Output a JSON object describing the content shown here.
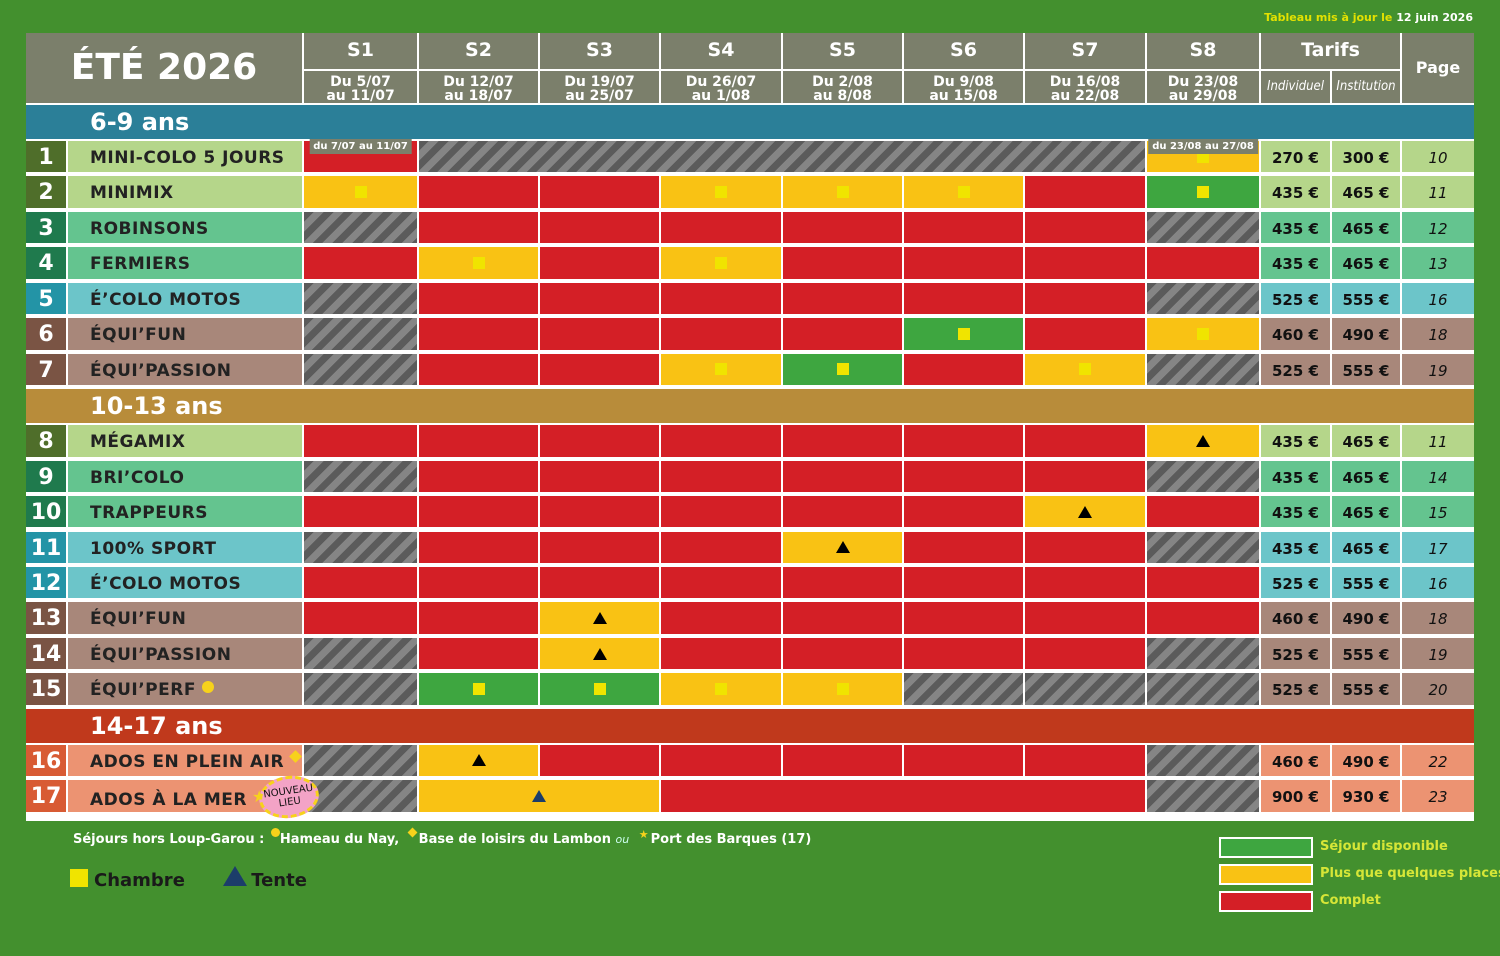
{
  "updated": {
    "prefix": "Tableau mis à jour le",
    "date": "12 juin 2026"
  },
  "title": "ÉTÉ 2026",
  "weeks": [
    {
      "label": "S1",
      "line1": "Du 5/07",
      "line2": "au 11/07"
    },
    {
      "label": "S2",
      "line1": "Du 12/07",
      "line2": "au 18/07"
    },
    {
      "label": "S3",
      "line1": "Du 19/07",
      "line2": "au 25/07"
    },
    {
      "label": "S4",
      "line1": "Du 26/07",
      "line2": "au 1/08"
    },
    {
      "label": "S5",
      "line1": "Du 2/08",
      "line2": "au 8/08"
    },
    {
      "label": "S6",
      "line1": "Du 9/08",
      "line2": "au 15/08"
    },
    {
      "label": "S7",
      "line1": "Du 16/08",
      "line2": "au 22/08"
    },
    {
      "label": "S8",
      "line1": "Du 23/08",
      "line2": "au 29/08"
    }
  ],
  "tarifs": {
    "label": "Tarifs",
    "individuel": "Individuel",
    "institution": "Institution"
  },
  "page_label": "Page",
  "colors": {
    "available": "#3ea640",
    "few": "#f9c214",
    "full": "#d41f26",
    "na": "#6f6f6f"
  },
  "age_groups": [
    {
      "label": "6-9 ans",
      "color": "#2b7f98"
    },
    {
      "label": "10-13 ans",
      "color": "#b88c3a"
    },
    {
      "label": "14-17 ans",
      "color": "#c0391c"
    }
  ],
  "rows": [
    {
      "num": "1",
      "name": "MINI-COLO 5 JOURS",
      "group": 0,
      "color": "#b5d68a",
      "numColor": "#4f6e2a",
      "prices": [
        "270 €",
        "300 €"
      ],
      "page": "10",
      "cells": [
        {
          "s": "red",
          "span": 1,
          "note": "du 7/07 au 11/07"
        },
        {
          "s": "na",
          "span": 6
        },
        {
          "s": "yel",
          "span": 1,
          "m": "sq",
          "note": "du 23/08 au 27/08"
        }
      ]
    },
    {
      "num": "2",
      "name": "MINIMIX",
      "group": 0,
      "color": "#b5d68a",
      "numColor": "#4f6e2a",
      "prices": [
        "435 €",
        "465 €"
      ],
      "page": "11",
      "cells": [
        {
          "s": "yel",
          "m": "sq"
        },
        {
          "s": "red"
        },
        {
          "s": "red"
        },
        {
          "s": "yel",
          "m": "sq"
        },
        {
          "s": "yel",
          "m": "sq"
        },
        {
          "s": "yel",
          "m": "sq"
        },
        {
          "s": "red"
        },
        {
          "s": "grn",
          "m": "sq"
        }
      ]
    },
    {
      "num": "3",
      "name": "ROBINSONS",
      "group": 0,
      "color": "#64c48f",
      "numColor": "#1f7a4d",
      "prices": [
        "435 €",
        "465 €"
      ],
      "page": "12",
      "cells": [
        {
          "s": "na"
        },
        {
          "s": "red"
        },
        {
          "s": "red"
        },
        {
          "s": "red"
        },
        {
          "s": "red"
        },
        {
          "s": "red"
        },
        {
          "s": "red"
        },
        {
          "s": "na"
        }
      ]
    },
    {
      "num": "4",
      "name": "FERMIERS",
      "group": 0,
      "color": "#64c48f",
      "numColor": "#1f7a4d",
      "prices": [
        "435 €",
        "465 €"
      ],
      "page": "13",
      "cells": [
        {
          "s": "red"
        },
        {
          "s": "yel",
          "m": "sq"
        },
        {
          "s": "red"
        },
        {
          "s": "yel",
          "m": "sq"
        },
        {
          "s": "red"
        },
        {
          "s": "red"
        },
        {
          "s": "red"
        },
        {
          "s": "red"
        }
      ]
    },
    {
      "num": "5",
      "name": "É’COLO MOTOS",
      "group": 0,
      "color": "#6cc5c9",
      "numColor": "#2394a6",
      "prices": [
        "525 €",
        "555 €"
      ],
      "page": "16",
      "cells": [
        {
          "s": "na"
        },
        {
          "s": "red"
        },
        {
          "s": "red"
        },
        {
          "s": "red"
        },
        {
          "s": "red"
        },
        {
          "s": "red"
        },
        {
          "s": "red"
        },
        {
          "s": "na"
        }
      ]
    },
    {
      "num": "6",
      "name": "ÉQUI’FUN",
      "group": 0,
      "color": "#a8877a",
      "numColor": "#7a5444",
      "prices": [
        "460 €",
        "490 €"
      ],
      "page": "18",
      "cells": [
        {
          "s": "na"
        },
        {
          "s": "red"
        },
        {
          "s": "red"
        },
        {
          "s": "red"
        },
        {
          "s": "red"
        },
        {
          "s": "grn",
          "m": "sq"
        },
        {
          "s": "red"
        },
        {
          "s": "yel",
          "m": "sq"
        }
      ]
    },
    {
      "num": "7",
      "name": "ÉQUI’PASSION",
      "group": 0,
      "color": "#a8877a",
      "numColor": "#7a5444",
      "prices": [
        "525 €",
        "555 €"
      ],
      "page": "19",
      "cells": [
        {
          "s": "na"
        },
        {
          "s": "red"
        },
        {
          "s": "red"
        },
        {
          "s": "yel",
          "m": "sq"
        },
        {
          "s": "grn",
          "m": "sq"
        },
        {
          "s": "red"
        },
        {
          "s": "yel",
          "m": "sq"
        },
        {
          "s": "na"
        }
      ]
    },
    {
      "num": "8",
      "name": "MÉGAMIX",
      "group": 1,
      "color": "#b5d68a",
      "numColor": "#4f6e2a",
      "prices": [
        "435 €",
        "465 €"
      ],
      "page": "11",
      "cells": [
        {
          "s": "red"
        },
        {
          "s": "red"
        },
        {
          "s": "red"
        },
        {
          "s": "red"
        },
        {
          "s": "red"
        },
        {
          "s": "red"
        },
        {
          "s": "red"
        },
        {
          "s": "yel",
          "m": "tri"
        }
      ]
    },
    {
      "num": "9",
      "name": "BRI’COLO",
      "group": 1,
      "color": "#64c48f",
      "numColor": "#1f7a4d",
      "prices": [
        "435 €",
        "465 €"
      ],
      "page": "14",
      "cells": [
        {
          "s": "na"
        },
        {
          "s": "red"
        },
        {
          "s": "red"
        },
        {
          "s": "red"
        },
        {
          "s": "red"
        },
        {
          "s": "red"
        },
        {
          "s": "red"
        },
        {
          "s": "na"
        }
      ]
    },
    {
      "num": "10",
      "name": "TRAPPEURS",
      "group": 1,
      "color": "#64c48f",
      "numColor": "#1f7a4d",
      "prices": [
        "435 €",
        "465 €"
      ],
      "page": "15",
      "cells": [
        {
          "s": "red"
        },
        {
          "s": "red"
        },
        {
          "s": "red"
        },
        {
          "s": "red"
        },
        {
          "s": "red"
        },
        {
          "s": "red"
        },
        {
          "s": "yel",
          "m": "tri"
        },
        {
          "s": "red"
        }
      ]
    },
    {
      "num": "11",
      "name": "100% SPORT",
      "group": 1,
      "color": "#6cc5c9",
      "numColor": "#2394a6",
      "prices": [
        "435 €",
        "465 €"
      ],
      "page": "17",
      "cells": [
        {
          "s": "na"
        },
        {
          "s": "red"
        },
        {
          "s": "red"
        },
        {
          "s": "red"
        },
        {
          "s": "yel",
          "m": "tri"
        },
        {
          "s": "red"
        },
        {
          "s": "red"
        },
        {
          "s": "na"
        }
      ]
    },
    {
      "num": "12",
      "name": "É’COLO MOTOS",
      "group": 1,
      "color": "#6cc5c9",
      "numColor": "#2394a6",
      "prices": [
        "525 €",
        "555 €"
      ],
      "page": "16",
      "cells": [
        {
          "s": "red"
        },
        {
          "s": "red"
        },
        {
          "s": "red"
        },
        {
          "s": "red"
        },
        {
          "s": "red"
        },
        {
          "s": "red"
        },
        {
          "s": "red"
        },
        {
          "s": "red"
        }
      ]
    },
    {
      "num": "13",
      "name": "ÉQUI’FUN",
      "group": 1,
      "color": "#a8877a",
      "numColor": "#7a5444",
      "prices": [
        "460 €",
        "490 €"
      ],
      "page": "18",
      "cells": [
        {
          "s": "red"
        },
        {
          "s": "red"
        },
        {
          "s": "yel",
          "m": "tri"
        },
        {
          "s": "red"
        },
        {
          "s": "red"
        },
        {
          "s": "red"
        },
        {
          "s": "red"
        },
        {
          "s": "red"
        }
      ]
    },
    {
      "num": "14",
      "name": "ÉQUI’PASSION",
      "group": 1,
      "color": "#a8877a",
      "numColor": "#7a5444",
      "prices": [
        "525 €",
        "555 €"
      ],
      "page": "19",
      "cells": [
        {
          "s": "na"
        },
        {
          "s": "red"
        },
        {
          "s": "yel",
          "m": "tri"
        },
        {
          "s": "red"
        },
        {
          "s": "red"
        },
        {
          "s": "red"
        },
        {
          "s": "red"
        },
        {
          "s": "na"
        }
      ]
    },
    {
      "num": "15",
      "name": "ÉQUI’PERF",
      "group": 1,
      "color": "#a8877a",
      "numColor": "#7a5444",
      "prices": [
        "525 €",
        "555 €"
      ],
      "page": "20",
      "site": "dot",
      "cells": [
        {
          "s": "na"
        },
        {
          "s": "grn",
          "m": "sq"
        },
        {
          "s": "grn",
          "m": "sq"
        },
        {
          "s": "yel",
          "m": "sq"
        },
        {
          "s": "yel",
          "m": "sq"
        },
        {
          "s": "na"
        },
        {
          "s": "na"
        },
        {
          "s": "na"
        }
      ]
    },
    {
      "num": "16",
      "name": "ADOS EN PLEIN AIR",
      "group": 2,
      "color": "#ec9372",
      "numColor": "#d85b34",
      "prices": [
        "460 €",
        "490 €"
      ],
      "page": "22",
      "site": "diamond",
      "cells": [
        {
          "s": "na"
        },
        {
          "s": "yel",
          "m": "tri"
        },
        {
          "s": "red"
        },
        {
          "s": "red"
        },
        {
          "s": "red"
        },
        {
          "s": "red"
        },
        {
          "s": "red"
        },
        {
          "s": "na"
        }
      ]
    },
    {
      "num": "17",
      "name": "ADOS À LA MER",
      "group": 2,
      "color": "#ec9372",
      "numColor": "#d85b34",
      "prices": [
        "900 €",
        "930 €"
      ],
      "page": "23",
      "site": "star",
      "badge": "NOUVEAU LIEU",
      "cells": [
        {
          "s": "na"
        },
        {
          "s": "yel",
          "m": "tri-blue",
          "span": 2
        },
        {
          "s": "red",
          "span": 4
        },
        {
          "s": "na"
        }
      ]
    }
  ],
  "footnote": {
    "intro": "Séjours hors Loup-Garou :",
    "site1": "Hameau du Nay,",
    "site2": "Base de loisirs du Lambon",
    "or": "ou",
    "site3": "Port des Barques (17)"
  },
  "types": {
    "room": "Chambre",
    "tent": "Tente"
  },
  "legend": [
    {
      "label": "Séjour disponible",
      "color": "#3ea640"
    },
    {
      "label": "Plus que quelques places",
      "color": "#f9c214"
    },
    {
      "label": "Complet",
      "color": "#d41f26"
    }
  ]
}
